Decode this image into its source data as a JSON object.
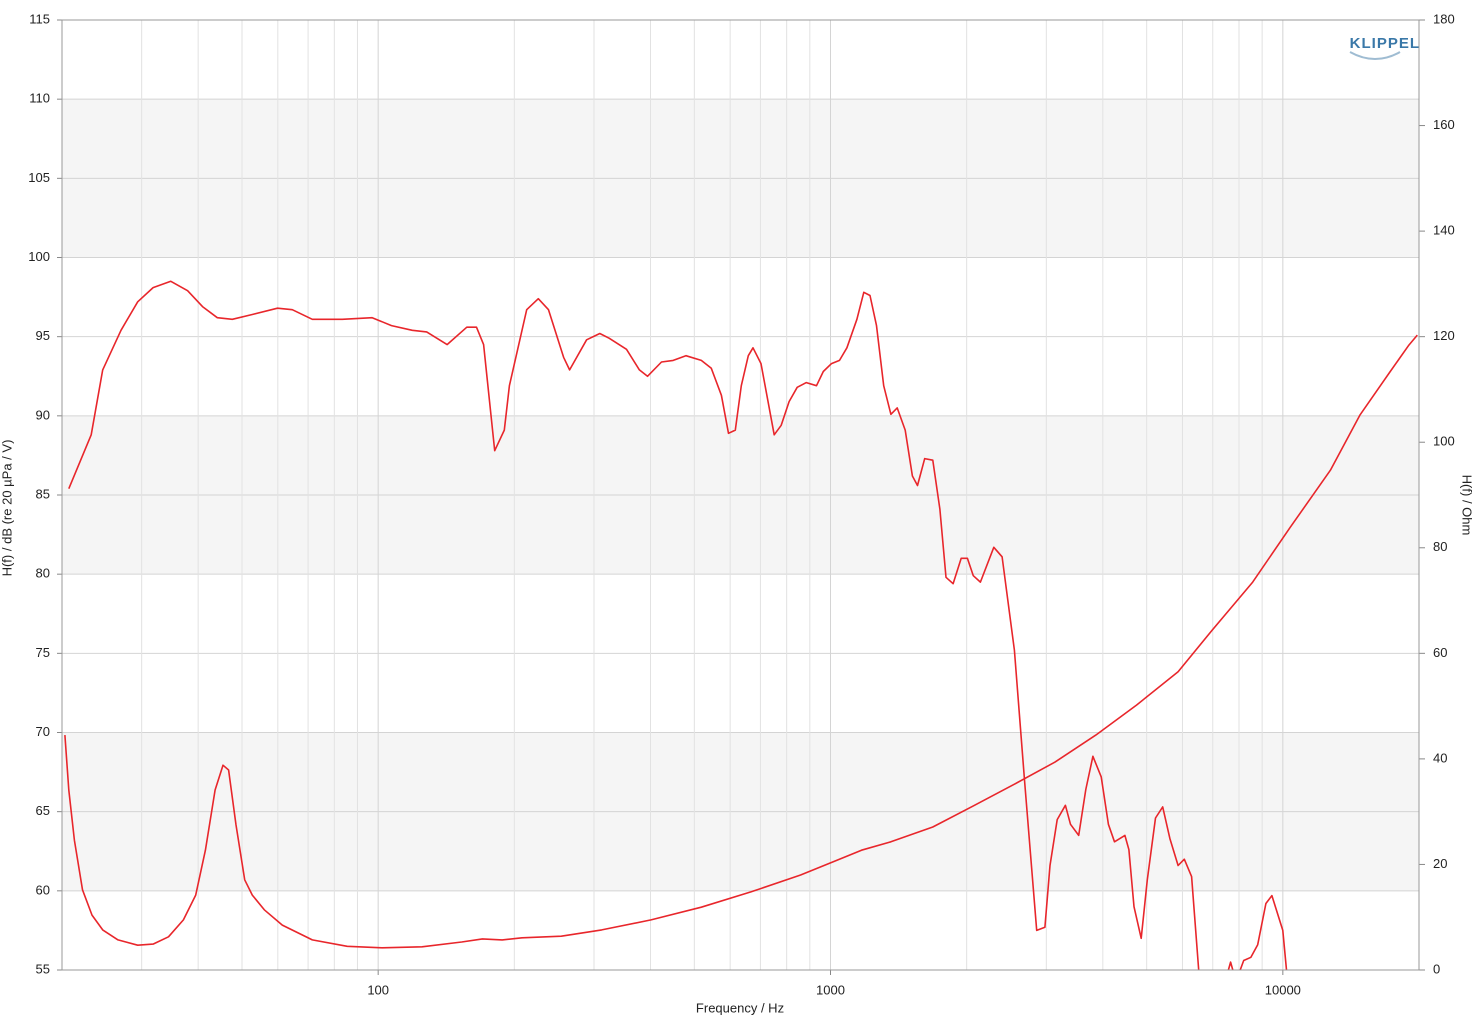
{
  "chart_data": {
    "type": "line",
    "logo": "KLIPPEL",
    "x_label": "Frequency / Hz",
    "y_label": "H(f) / dB (re 20 µPa / V)",
    "y2_label": "H(f) / Ohm",
    "xlim": [
      20,
      20000
    ],
    "xticks": [
      100,
      1000,
      10000
    ],
    "x_minor_grid": [
      30,
      40,
      50,
      60,
      70,
      80,
      90,
      200,
      300,
      400,
      500,
      600,
      700,
      800,
      900,
      2000,
      3000,
      4000,
      5000,
      6000,
      7000,
      8000,
      9000
    ],
    "log_x": true,
    "ylim": [
      55,
      115
    ],
    "yticks": [
      55,
      60,
      65,
      70,
      75,
      80,
      85,
      90,
      95,
      100,
      105,
      110,
      115
    ],
    "y2lim": [
      0,
      180
    ],
    "y2ticks": [
      0,
      20,
      40,
      60,
      80,
      100,
      120,
      140,
      160,
      180
    ],
    "grid": true,
    "series": [
      {
        "color": "#e8262b",
        "x": [
          20.7,
          23.2,
          24.6,
          27.0,
          29.4,
          31.8,
          34.8,
          37.9,
          40.9,
          44.1,
          47.6,
          52.7,
          59.9,
          64.6,
          71.5,
          83.3,
          97,
          107,
          119,
          128,
          142,
          157,
          165,
          171,
          181,
          190,
          195,
          213,
          226,
          238,
          257,
          265,
          289,
          309,
          324,
          354,
          378,
          394,
          423,
          449,
          479,
          518,
          545,
          574,
          595,
          616,
          635,
          658,
          674,
          702,
          751,
          778,
          810,
          844,
          884,
          931,
          964,
          1005,
          1047,
          1087,
          1144,
          1185,
          1223,
          1264,
          1311,
          1360,
          1404,
          1463,
          1517,
          1557,
          1615,
          1683,
          1745,
          1800,
          1867,
          1945,
          2007,
          2069,
          2145,
          2296,
          2395,
          2550,
          2685,
          2857,
          2979,
          3056,
          3171,
          3306,
          3393,
          3538,
          3668,
          3803,
          3966,
          4114,
          4245,
          4475,
          4567,
          4687,
          4862,
          5016,
          5230,
          5425,
          5628,
          5868,
          6057,
          6286,
          6517,
          7000,
          7580,
          7665,
          7750,
          7900,
          8050,
          8195,
          8500,
          8800,
          9175,
          9460,
          10000,
          10190
        ],
        "values": [
          85.4,
          88.8,
          92.9,
          95.4,
          97.2,
          98.1,
          98.5,
          97.9,
          96.9,
          96.2,
          96.1,
          96.4,
          96.8,
          96.7,
          96.1,
          96.1,
          96.2,
          95.7,
          95.4,
          95.3,
          94.5,
          95.6,
          95.6,
          94.5,
          87.8,
          89.1,
          91.9,
          96.7,
          97.4,
          96.7,
          93.7,
          92.9,
          94.8,
          95.2,
          94.9,
          94.2,
          92.9,
          92.5,
          93.4,
          93.5,
          93.8,
          93.5,
          93.0,
          91.3,
          88.9,
          89.1,
          91.9,
          93.8,
          94.3,
          93.3,
          88.8,
          89.4,
          90.9,
          91.8,
          92.1,
          91.9,
          92.8,
          93.3,
          93.5,
          94.3,
          96.1,
          97.8,
          97.6,
          95.7,
          91.9,
          90.1,
          90.5,
          89.1,
          86.2,
          85.6,
          87.3,
          87.2,
          84.1,
          79.8,
          79.4,
          81.0,
          81.0,
          79.9,
          79.5,
          81.7,
          81.1,
          75.2,
          67.0,
          57.5,
          57.7,
          61.6,
          64.5,
          65.4,
          64.2,
          63.5,
          66.4,
          68.5,
          67.2,
          64.2,
          63.1,
          63.5,
          62.6,
          59.0,
          57.0,
          60.7,
          64.6,
          65.3,
          63.3,
          61.6,
          62.0,
          60.9,
          55.0,
          null,
          55.0,
          55.5,
          55.0,
          null,
          55.0,
          55.6,
          55.8,
          56.6,
          59.2,
          59.7,
          57.5,
          55.0
        ]
      },
      {
        "color": "#e8262b",
        "axis": "y2",
        "x": [
          20.3,
          20.7,
          21.3,
          22.2,
          23.3,
          24.6,
          26.6,
          29.4,
          31.8,
          34.4,
          37.1,
          39.5,
          41.5,
          43.6,
          45.4,
          46.7,
          48.5,
          50.7,
          52.7,
          56.0,
          61.4,
          71.5,
          85.4,
          102,
          125,
          153,
          170,
          188,
          208,
          254,
          312,
          401,
          518,
          667,
          859,
          1000,
          1171,
          1360,
          1683,
          2069,
          2550,
          3135,
          3860,
          4747,
          5868,
          6980,
          8580,
          10390,
          12740,
          14820,
          17250,
          19000,
          19830
        ],
        "values": [
          44.5,
          34.1,
          24.6,
          15.2,
          10.4,
          7.6,
          5.7,
          4.7,
          4.9,
          6.3,
          9.5,
          14.2,
          22.7,
          34.1,
          38.8,
          37.9,
          27.5,
          17.1,
          14.2,
          11.4,
          8.5,
          5.7,
          4.5,
          4.2,
          4.4,
          5.3,
          5.9,
          5.7,
          6.1,
          6.4,
          7.6,
          9.5,
          11.9,
          14.8,
          18.0,
          20.3,
          22.7,
          24.3,
          27.1,
          31.1,
          35.2,
          39.4,
          44.5,
          50.2,
          56.5,
          64.4,
          73.5,
          83.9,
          94.7,
          105.2,
          113.3,
          118.4,
          120.3
        ]
      }
    ]
  }
}
